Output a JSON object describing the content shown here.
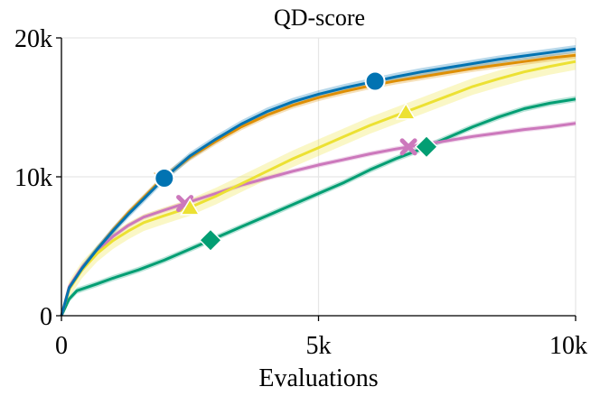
{
  "chart_data": {
    "type": "line",
    "title": "QD-score",
    "xlabel": "Evaluations",
    "ylabel": "",
    "xlim": [
      0,
      10000
    ],
    "ylim": [
      0,
      20000
    ],
    "grid": true,
    "xticks": [
      {
        "value": 0,
        "label": "0"
      },
      {
        "value": 5000,
        "label": "5k"
      },
      {
        "value": 10000,
        "label": "10k"
      }
    ],
    "yticks": [
      {
        "value": 0,
        "label": "0"
      },
      {
        "value": 10000,
        "label": "10k"
      },
      {
        "value": 20000,
        "label": "20k"
      }
    ],
    "series": [
      {
        "name": "blue",
        "color": "#0173b2",
        "marker": "circle",
        "x": [
          0,
          150,
          400,
          700,
          1000,
          1300,
          1600,
          2000,
          2500,
          3000,
          3500,
          4000,
          4500,
          5000,
          5500,
          6000,
          6500,
          7000,
          7500,
          8000,
          8500,
          9000,
          9500,
          10000
        ],
        "y": [
          0,
          2000,
          3400,
          4800,
          6100,
          7300,
          8400,
          9900,
          11500,
          12700,
          13800,
          14700,
          15400,
          15950,
          16400,
          16800,
          17200,
          17550,
          17850,
          18150,
          18450,
          18700,
          18950,
          19200
        ],
        "band": 280,
        "markers_at": [
          2000,
          6100
        ]
      },
      {
        "name": "orange",
        "color": "#de8f05",
        "marker": "triangle-down",
        "x": [
          0,
          150,
          400,
          700,
          1000,
          1300,
          1600,
          2000,
          2500,
          3000,
          3500,
          4000,
          4500,
          5000,
          5500,
          6000,
          6500,
          7000,
          7500,
          8000,
          8500,
          9000,
          9500,
          10000
        ],
        "y": [
          0,
          2000,
          3400,
          4800,
          6150,
          7400,
          8500,
          10000,
          11400,
          12550,
          13600,
          14450,
          15150,
          15700,
          16150,
          16550,
          16900,
          17200,
          17500,
          17800,
          18050,
          18300,
          18550,
          18750
        ],
        "band": 250,
        "markers_at": [
          1950,
          6100
        ]
      },
      {
        "name": "yellow",
        "color": "#ece133",
        "marker": "triangle-up",
        "x": [
          0,
          150,
          400,
          700,
          1000,
          1300,
          1600,
          2000,
          2500,
          3000,
          3500,
          4000,
          4500,
          5000,
          5500,
          6000,
          6500,
          7000,
          7500,
          8000,
          8500,
          9000,
          9500,
          10000
        ],
        "y": [
          0,
          1900,
          3300,
          4500,
          5400,
          6100,
          6700,
          7200,
          7800,
          8600,
          9500,
          10400,
          11300,
          12100,
          12900,
          13700,
          14400,
          15100,
          15800,
          16500,
          17050,
          17550,
          17950,
          18300
        ],
        "band": 600,
        "markers_at": [
          2500,
          6700
        ]
      },
      {
        "name": "pink",
        "color": "#cc78bc",
        "marker": "x",
        "x": [
          0,
          150,
          400,
          700,
          1000,
          1300,
          1600,
          2000,
          2500,
          3000,
          3500,
          4000,
          4500,
          5000,
          5500,
          6000,
          6500,
          7000,
          7500,
          8000,
          8500,
          9000,
          9500,
          10000
        ],
        "y": [
          0,
          2100,
          3500,
          4700,
          5700,
          6500,
          7100,
          7600,
          8200,
          8800,
          9400,
          9900,
          10400,
          10850,
          11250,
          11650,
          12000,
          12300,
          12600,
          12900,
          13150,
          13400,
          13600,
          13850
        ],
        "band": 180,
        "markers_at": [
          2400,
          6750
        ]
      },
      {
        "name": "green",
        "color": "#029e73",
        "marker": "diamond",
        "x": [
          0,
          150,
          300,
          700,
          1000,
          1500,
          2000,
          2500,
          3000,
          3500,
          4000,
          4500,
          5000,
          5500,
          6000,
          6500,
          7000,
          7500,
          8000,
          8500,
          9000,
          9500,
          10000
        ],
        "y": [
          0,
          1200,
          1800,
          2300,
          2700,
          3300,
          4000,
          4800,
          5600,
          6400,
          7200,
          8000,
          8800,
          9600,
          10500,
          11300,
          12000,
          12800,
          13600,
          14300,
          14900,
          15300,
          15600
        ],
        "band": 220,
        "markers_at": [
          2900,
          7100
        ]
      }
    ]
  }
}
